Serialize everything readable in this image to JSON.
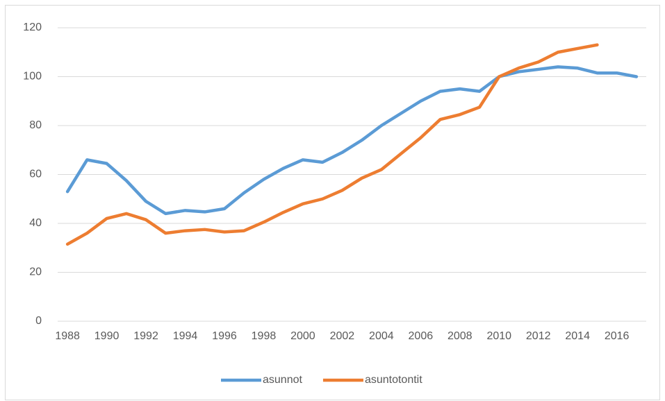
{
  "chart_data": {
    "type": "line",
    "categories": [
      "1988",
      null,
      "1990",
      null,
      "1992",
      null,
      "1994",
      null,
      "1996",
      null,
      "1998",
      null,
      "2000",
      null,
      "2002",
      null,
      "2004",
      null,
      "2006",
      null,
      "2008",
      null,
      "2010",
      null,
      "2012",
      null,
      "2014",
      null,
      "2016",
      null
    ],
    "series": [
      {
        "name": "asunnot",
        "color": "#5b9bd5",
        "values": [
          53,
          66,
          64.5,
          57.5,
          49,
          44,
          45.3,
          44.7,
          46,
          52.5,
          58,
          62.5,
          66,
          65,
          69,
          74,
          80,
          85,
          90,
          94,
          95,
          94,
          100,
          102,
          103,
          104,
          103.5,
          101.5,
          101.5,
          100
        ]
      },
      {
        "name": "asuntotontit",
        "color": "#ed7d31",
        "values": [
          31.5,
          36,
          42,
          44,
          41.5,
          36,
          37,
          37.5,
          36.5,
          37,
          40.5,
          44.5,
          48,
          50,
          53.5,
          58.5,
          62,
          68.5,
          75,
          82.5,
          84.5,
          87.5,
          100,
          103.5,
          106,
          110,
          111.5,
          113,
          null,
          null
        ]
      }
    ],
    "ylim": [
      0,
      120
    ],
    "yticks": [
      0,
      20,
      40,
      60,
      80,
      100,
      120
    ],
    "grid": true,
    "legend": "bottom"
  }
}
